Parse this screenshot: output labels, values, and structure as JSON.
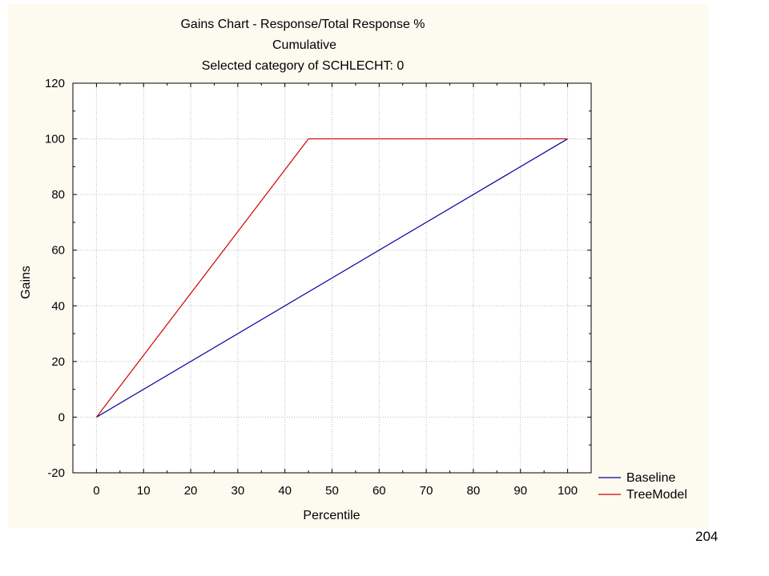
{
  "page": {
    "number": "204"
  },
  "chart_data": {
    "type": "line",
    "title": "Gains Chart - Response/Total Response %",
    "subtitle_lines": [
      "Cumulative",
      "Selected category of SCHLECHT: 0"
    ],
    "xlabel": "Percentile",
    "ylabel": "Gains",
    "xlim": [
      -5,
      105
    ],
    "ylim": [
      -20,
      120
    ],
    "x_ticks": [
      0,
      10,
      20,
      30,
      40,
      50,
      60,
      70,
      80,
      90,
      100
    ],
    "y_ticks": [
      -20,
      0,
      20,
      40,
      60,
      80,
      100,
      120
    ],
    "grid": true,
    "legend_position": "bottom-right outside",
    "series": [
      {
        "name": "Baseline",
        "color": "#0000a0",
        "points": [
          [
            0,
            0
          ],
          [
            100,
            100
          ]
        ]
      },
      {
        "name": "TreeModel",
        "color": "#d00000",
        "points": [
          [
            0,
            0
          ],
          [
            45,
            100
          ],
          [
            100,
            100
          ]
        ]
      }
    ]
  }
}
